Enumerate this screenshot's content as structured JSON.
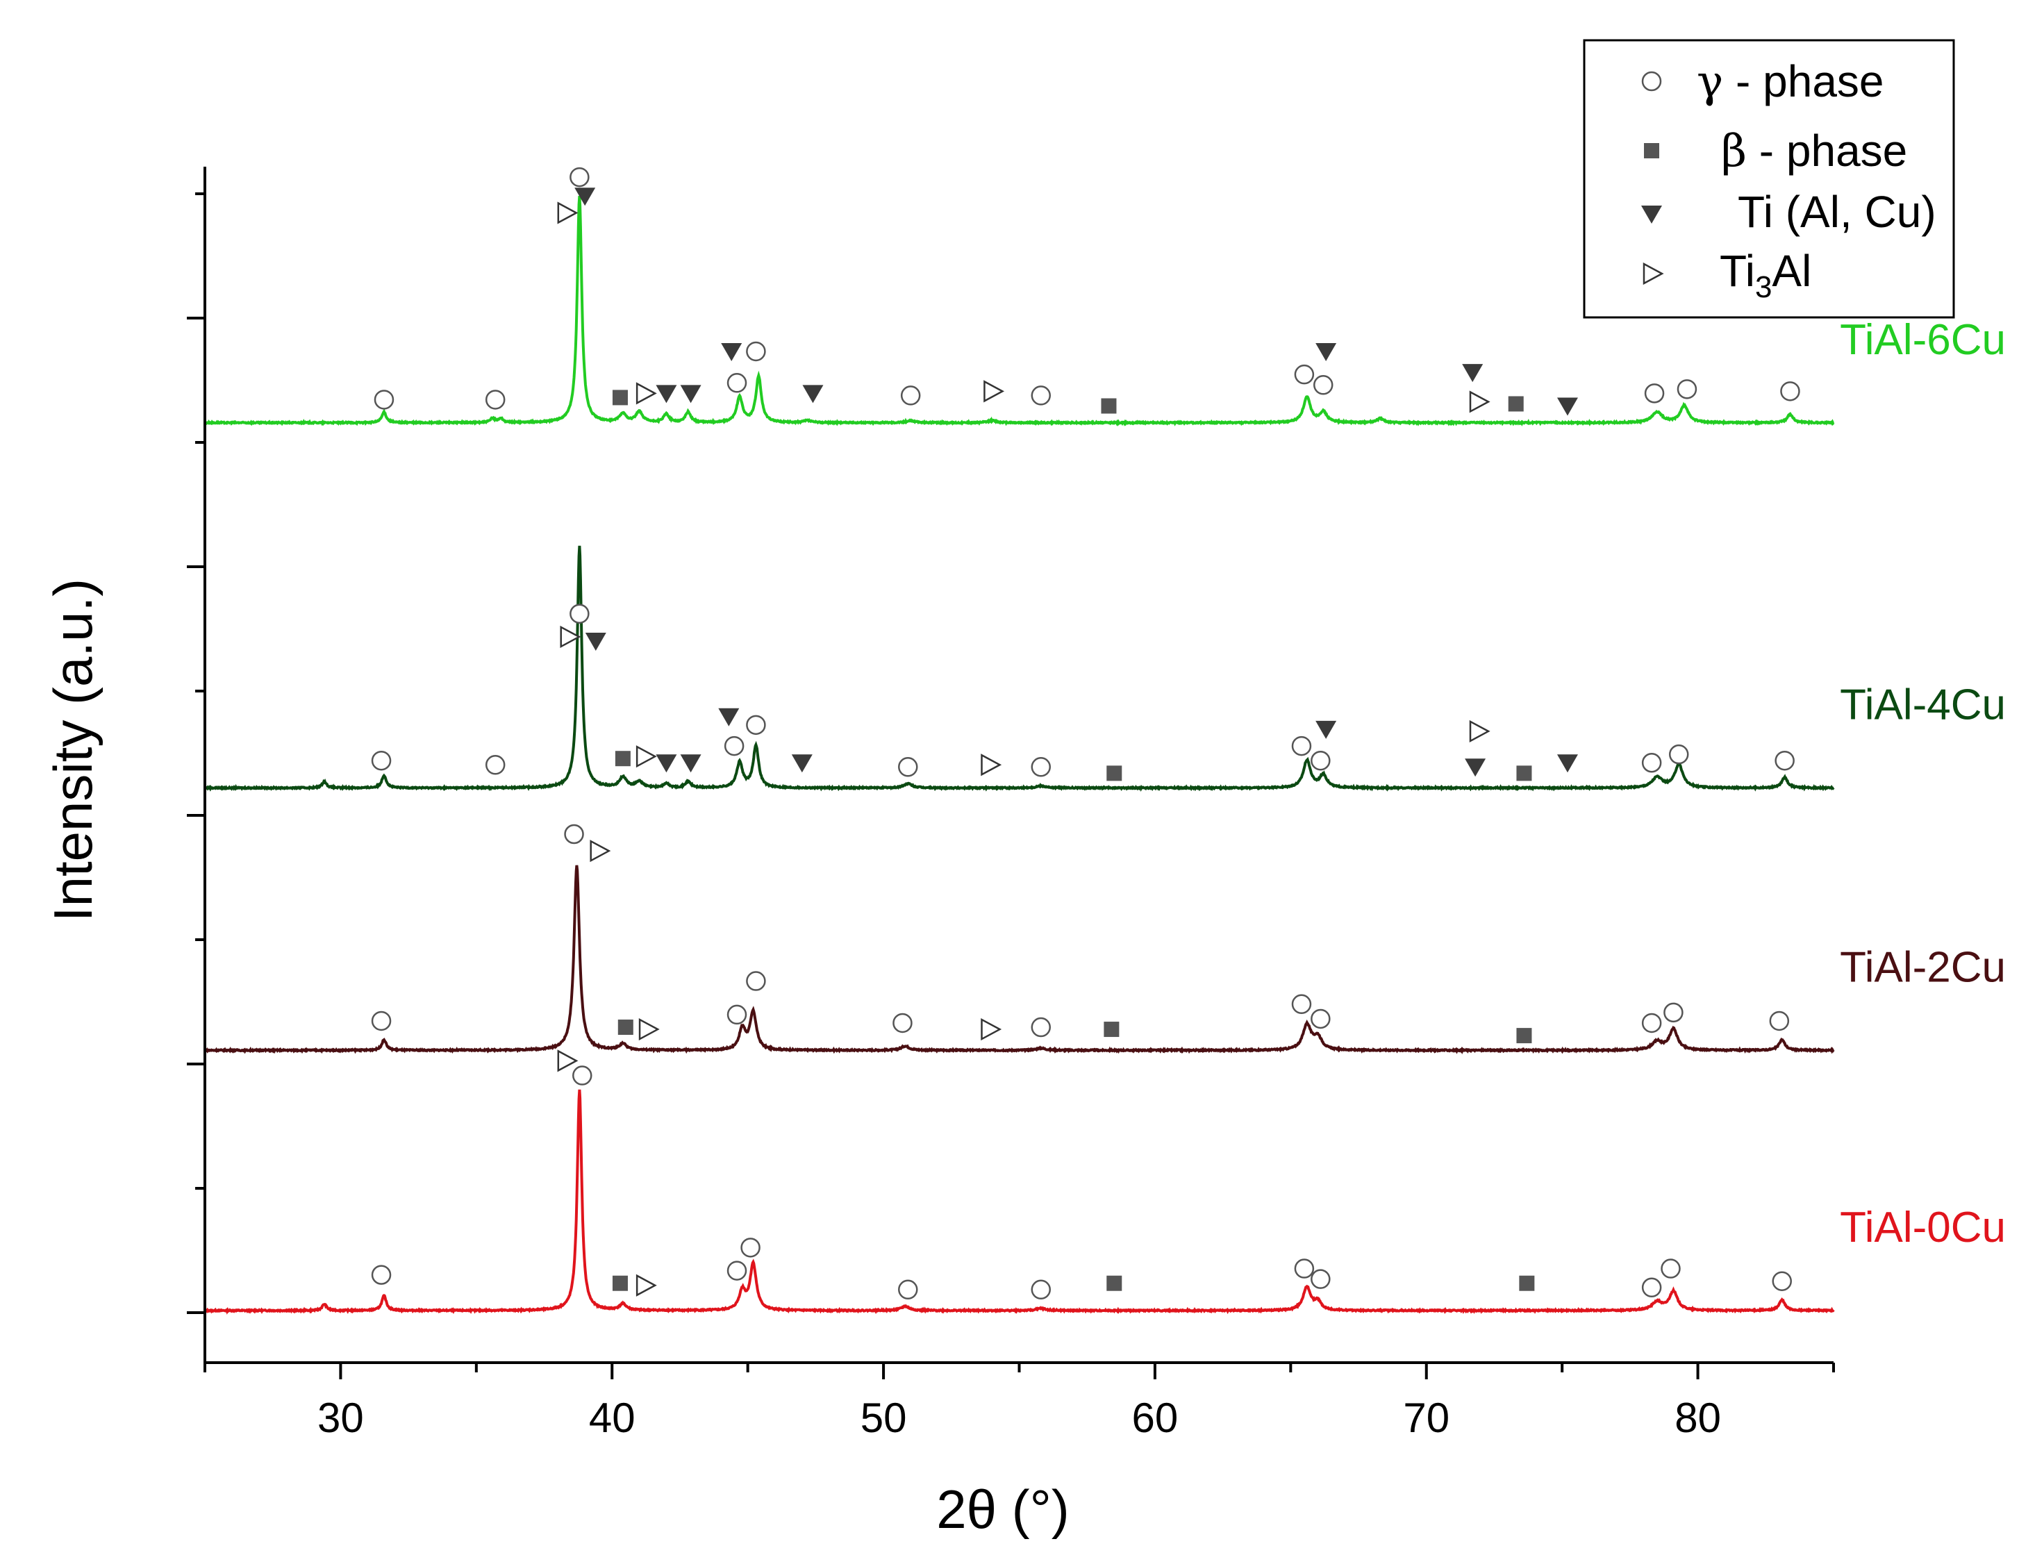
{
  "chart_data": {
    "type": "line",
    "xlabel": "2θ (°)",
    "ylabel": "Intensity (a.u.)",
    "xlim": [
      25,
      85
    ],
    "xticks": [
      "30",
      "40",
      "50",
      "60",
      "70",
      "80"
    ],
    "ylim": [
      0,
      5.45
    ],
    "y_tick_labels": "none",
    "grid": false,
    "legend": {
      "position": "top-right",
      "entries": [
        {
          "marker": "open-circle",
          "greek": "γ",
          "text": " - phase"
        },
        {
          "marker": "filled-square",
          "greek": "β",
          "text": " - phase"
        },
        {
          "marker": "filled-down-triangle",
          "text": "Ti (Al, Cu)"
        },
        {
          "marker": "open-right-triangle",
          "text": "Ti",
          "sub": "3",
          "tail": "Al"
        }
      ]
    },
    "phase_colors": {
      "circle": "#555555",
      "square": "#555555",
      "triangle": "#3a3a3a",
      "ti3al": "#333333"
    },
    "series": [
      {
        "name": "TiAl-0Cu",
        "color": "#e0141c",
        "baseline": 0.0,
        "peaks": [
          [
            29.4,
            0.03,
            0.1
          ],
          [
            31.6,
            0.07,
            0.1
          ],
          [
            38.8,
            1.05,
            0.1
          ],
          [
            40.4,
            0.03,
            0.15
          ],
          [
            44.8,
            0.09,
            0.14
          ],
          [
            45.2,
            0.22,
            0.14
          ],
          [
            50.8,
            0.02,
            0.18
          ],
          [
            55.8,
            0.01,
            0.2
          ],
          [
            65.6,
            0.11,
            0.17
          ],
          [
            66.0,
            0.04,
            0.15
          ],
          [
            78.5,
            0.04,
            0.22
          ],
          [
            79.1,
            0.09,
            0.18
          ],
          [
            83.1,
            0.05,
            0.13
          ]
        ],
        "markers": [
          {
            "type": "circle",
            "x": 31.5,
            "y": 0.17
          },
          {
            "type": "circle",
            "x": 38.9,
            "y": 1.12
          },
          {
            "type": "circle",
            "x": 44.6,
            "y": 0.19
          },
          {
            "type": "circle",
            "x": 45.1,
            "y": 0.3
          },
          {
            "type": "circle",
            "x": 50.9,
            "y": 0.1
          },
          {
            "type": "circle",
            "x": 55.8,
            "y": 0.1
          },
          {
            "type": "circle",
            "x": 65.5,
            "y": 0.2
          },
          {
            "type": "circle",
            "x": 66.1,
            "y": 0.15
          },
          {
            "type": "circle",
            "x": 78.3,
            "y": 0.11
          },
          {
            "type": "circle",
            "x": 79.0,
            "y": 0.2
          },
          {
            "type": "circle",
            "x": 83.1,
            "y": 0.14
          },
          {
            "type": "square",
            "x": 40.3,
            "y": 0.13
          },
          {
            "type": "square",
            "x": 58.5,
            "y": 0.13
          },
          {
            "type": "square",
            "x": 73.7,
            "y": 0.13
          },
          {
            "type": "ti3al",
            "x": 41.2,
            "y": 0.12
          },
          {
            "type": "ti3al",
            "x": 38.3,
            "y": 1.19
          }
        ]
      },
      {
        "name": "TiAl-2Cu",
        "color": "#4a0f12",
        "baseline": 1.24,
        "peaks": [
          [
            31.6,
            0.05,
            0.1
          ],
          [
            38.7,
            0.88,
            0.12
          ],
          [
            40.4,
            0.03,
            0.15
          ],
          [
            44.8,
            0.1,
            0.14
          ],
          [
            45.2,
            0.18,
            0.14
          ],
          [
            50.8,
            0.02,
            0.18
          ],
          [
            55.8,
            0.01,
            0.2
          ],
          [
            65.6,
            0.12,
            0.18
          ],
          [
            66.0,
            0.06,
            0.18
          ],
          [
            78.5,
            0.04,
            0.22
          ],
          [
            79.1,
            0.1,
            0.18
          ],
          [
            83.1,
            0.05,
            0.13
          ]
        ],
        "markers": [
          {
            "type": "circle",
            "x": 31.5,
            "y": 1.38
          },
          {
            "type": "circle",
            "x": 38.6,
            "y": 2.27
          },
          {
            "type": "circle",
            "x": 44.6,
            "y": 1.41
          },
          {
            "type": "circle",
            "x": 45.3,
            "y": 1.57
          },
          {
            "type": "circle",
            "x": 50.7,
            "y": 1.37
          },
          {
            "type": "circle",
            "x": 55.8,
            "y": 1.35
          },
          {
            "type": "circle",
            "x": 65.4,
            "y": 1.46
          },
          {
            "type": "circle",
            "x": 66.1,
            "y": 1.39
          },
          {
            "type": "circle",
            "x": 78.3,
            "y": 1.37
          },
          {
            "type": "circle",
            "x": 79.1,
            "y": 1.42
          },
          {
            "type": "circle",
            "x": 83.0,
            "y": 1.38
          },
          {
            "type": "square",
            "x": 40.5,
            "y": 1.35
          },
          {
            "type": "square",
            "x": 58.4,
            "y": 1.34
          },
          {
            "type": "square",
            "x": 73.6,
            "y": 1.31
          },
          {
            "type": "ti3al",
            "x": 41.3,
            "y": 1.34
          },
          {
            "type": "ti3al",
            "x": 53.9,
            "y": 1.34
          },
          {
            "type": "ti3al",
            "x": 39.5,
            "y": 2.19
          }
        ]
      },
      {
        "name": "TiAl-4Cu",
        "color": "#0b4a12",
        "baseline": 2.49,
        "peaks": [
          [
            29.4,
            0.03,
            0.1
          ],
          [
            31.6,
            0.06,
            0.1
          ],
          [
            38.8,
            1.15,
            0.1
          ],
          [
            40.4,
            0.05,
            0.15
          ],
          [
            41.0,
            0.03,
            0.15
          ],
          [
            42.0,
            0.02,
            0.12
          ],
          [
            42.8,
            0.03,
            0.12
          ],
          [
            44.7,
            0.12,
            0.13
          ],
          [
            45.3,
            0.2,
            0.12
          ],
          [
            50.9,
            0.02,
            0.18
          ],
          [
            55.8,
            0.01,
            0.2
          ],
          [
            65.6,
            0.13,
            0.16
          ],
          [
            66.2,
            0.06,
            0.16
          ],
          [
            78.5,
            0.05,
            0.22
          ],
          [
            79.3,
            0.11,
            0.18
          ],
          [
            83.2,
            0.05,
            0.13
          ]
        ],
        "markers": [
          {
            "type": "circle",
            "x": 31.5,
            "y": 2.62
          },
          {
            "type": "circle",
            "x": 35.7,
            "y": 2.6
          },
          {
            "type": "circle",
            "x": 38.8,
            "y": 3.32
          },
          {
            "type": "circle",
            "x": 44.5,
            "y": 2.69
          },
          {
            "type": "circle",
            "x": 45.3,
            "y": 2.79
          },
          {
            "type": "circle",
            "x": 50.9,
            "y": 2.59
          },
          {
            "type": "circle",
            "x": 55.8,
            "y": 2.59
          },
          {
            "type": "circle",
            "x": 65.4,
            "y": 2.69
          },
          {
            "type": "circle",
            "x": 66.1,
            "y": 2.62
          },
          {
            "type": "circle",
            "x": 78.3,
            "y": 2.61
          },
          {
            "type": "circle",
            "x": 79.3,
            "y": 2.65
          },
          {
            "type": "circle",
            "x": 83.2,
            "y": 2.62
          },
          {
            "type": "square",
            "x": 40.4,
            "y": 2.63
          },
          {
            "type": "square",
            "x": 58.5,
            "y": 2.56
          },
          {
            "type": "square",
            "x": 73.6,
            "y": 2.56
          },
          {
            "type": "triangle",
            "x": 39.4,
            "y": 3.19
          },
          {
            "type": "triangle",
            "x": 42.0,
            "y": 2.61
          },
          {
            "type": "triangle",
            "x": 42.9,
            "y": 2.61
          },
          {
            "type": "triangle",
            "x": 44.3,
            "y": 2.83
          },
          {
            "type": "triangle",
            "x": 47.0,
            "y": 2.61
          },
          {
            "type": "triangle",
            "x": 66.3,
            "y": 2.77
          },
          {
            "type": "triangle",
            "x": 71.8,
            "y": 2.59
          },
          {
            "type": "triangle",
            "x": 75.2,
            "y": 2.61
          },
          {
            "type": "ti3al",
            "x": 41.2,
            "y": 2.64
          },
          {
            "type": "ti3al",
            "x": 53.9,
            "y": 2.6
          },
          {
            "type": "ti3al",
            "x": 71.9,
            "y": 2.76
          },
          {
            "type": "ti3al",
            "x": 38.4,
            "y": 3.21
          }
        ]
      },
      {
        "name": "TiAl-6Cu",
        "color": "#22cc22",
        "baseline": 4.23,
        "peaks": [
          [
            31.6,
            0.05,
            0.1
          ],
          [
            35.6,
            0.02,
            0.1
          ],
          [
            35.9,
            0.02,
            0.1
          ],
          [
            38.8,
            1.08,
            0.1
          ],
          [
            40.4,
            0.04,
            0.15
          ],
          [
            41.0,
            0.05,
            0.15
          ],
          [
            42.0,
            0.04,
            0.12
          ],
          [
            42.8,
            0.05,
            0.12
          ],
          [
            44.7,
            0.12,
            0.13
          ],
          [
            45.4,
            0.22,
            0.12
          ],
          [
            47.2,
            0.01,
            0.15
          ],
          [
            51.0,
            0.01,
            0.18
          ],
          [
            54.0,
            0.01,
            0.18
          ],
          [
            65.6,
            0.12,
            0.16
          ],
          [
            66.2,
            0.05,
            0.16
          ],
          [
            68.3,
            0.02,
            0.15
          ],
          [
            78.5,
            0.05,
            0.22
          ],
          [
            79.5,
            0.08,
            0.18
          ],
          [
            83.4,
            0.04,
            0.13
          ]
        ],
        "markers": [
          {
            "type": "circle",
            "x": 31.6,
            "y": 4.34
          },
          {
            "type": "circle",
            "x": 35.7,
            "y": 4.34
          },
          {
            "type": "circle",
            "x": 38.8,
            "y": 5.4
          },
          {
            "type": "circle",
            "x": 44.6,
            "y": 4.42
          },
          {
            "type": "circle",
            "x": 45.3,
            "y": 4.57
          },
          {
            "type": "circle",
            "x": 51.0,
            "y": 4.36
          },
          {
            "type": "circle",
            "x": 55.8,
            "y": 4.36
          },
          {
            "type": "circle",
            "x": 65.5,
            "y": 4.46
          },
          {
            "type": "circle",
            "x": 66.2,
            "y": 4.41
          },
          {
            "type": "circle",
            "x": 78.4,
            "y": 4.37
          },
          {
            "type": "circle",
            "x": 79.6,
            "y": 4.39
          },
          {
            "type": "circle",
            "x": 83.4,
            "y": 4.38
          },
          {
            "type": "square",
            "x": 40.3,
            "y": 4.35
          },
          {
            "type": "square",
            "x": 58.3,
            "y": 4.31
          },
          {
            "type": "square",
            "x": 73.3,
            "y": 4.32
          },
          {
            "type": "triangle",
            "x": 39.0,
            "y": 5.31
          },
          {
            "type": "triangle",
            "x": 42.0,
            "y": 4.37
          },
          {
            "type": "triangle",
            "x": 42.9,
            "y": 4.37
          },
          {
            "type": "triangle",
            "x": 44.4,
            "y": 4.57
          },
          {
            "type": "triangle",
            "x": 47.4,
            "y": 4.37
          },
          {
            "type": "triangle",
            "x": 66.3,
            "y": 4.57
          },
          {
            "type": "triangle",
            "x": 71.7,
            "y": 4.47
          },
          {
            "type": "triangle",
            "x": 75.2,
            "y": 4.31
          },
          {
            "type": "ti3al",
            "x": 41.2,
            "y": 4.37
          },
          {
            "type": "ti3al",
            "x": 54.0,
            "y": 4.38
          },
          {
            "type": "ti3al",
            "x": 71.9,
            "y": 4.33
          },
          {
            "type": "ti3al",
            "x": 38.3,
            "y": 5.23
          }
        ]
      }
    ]
  }
}
